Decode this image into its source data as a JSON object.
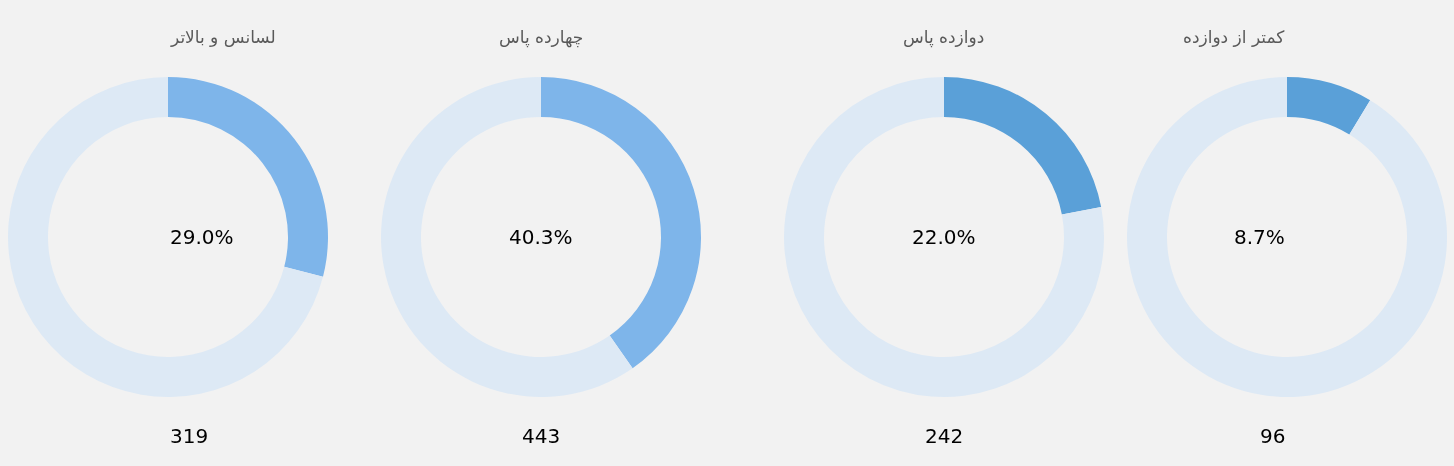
{
  "chart_data": [
    {
      "type": "donut",
      "title": "لسانس و بالاتر",
      "categories": [
        null,
        null
      ],
      "values": [
        29.0,
        71.0
      ],
      "colors": [
        "#7eb5ea",
        "#dde9f5"
      ],
      "annotations": [
        "29.0%",
        "319"
      ]
    },
    {
      "type": "donut",
      "title": "چهارده پاس",
      "categories": [
        null,
        null
      ],
      "values": [
        40.3,
        59.7
      ],
      "colors": [
        "#7eb5ea",
        "#dde9f5"
      ],
      "annotations": [
        "40.3%",
        "443"
      ]
    },
    {
      "type": "donut",
      "title": "دوازده پاس",
      "categories": [
        null,
        null
      ],
      "values": [
        22.0,
        78.0
      ],
      "colors": [
        "#5aa0d8",
        "#dde9f5"
      ],
      "annotations": [
        "22.0%",
        "242"
      ]
    },
    {
      "type": "donut",
      "title": "کمتر از دوازده",
      "categories": [
        null,
        null
      ],
      "values": [
        8.7,
        91.3
      ],
      "colors": [
        "#5aa0d8",
        "#dde9f5"
      ],
      "annotations": [
        "8.7%",
        "96"
      ]
    }
  ]
}
